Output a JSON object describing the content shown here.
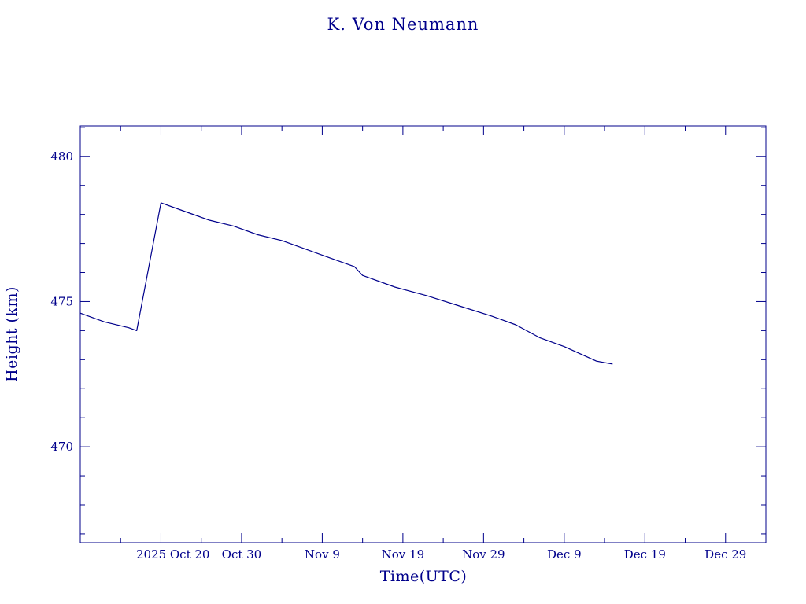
{
  "chart_data": {
    "type": "line",
    "title": "K. Von Neumann",
    "xlabel": "Time(UTC)",
    "ylabel": "Height (km)",
    "xlim": [
      "2025-10-10",
      "2026-01-03"
    ],
    "ylim": [
      466.7,
      481.05
    ],
    "grid": false,
    "color": "#00008b",
    "x_tick_labels": [
      {
        "date": "2025-10-20",
        "label": "2025 Oct 20"
      },
      {
        "date": "2025-10-30",
        "label": "Oct 30"
      },
      {
        "date": "2025-11-09",
        "label": "Nov  9"
      },
      {
        "date": "2025-11-19",
        "label": "Nov 19"
      },
      {
        "date": "2025-11-29",
        "label": "Nov 29"
      },
      {
        "date": "2025-12-09",
        "label": "Dec  9"
      },
      {
        "date": "2025-12-19",
        "label": "Dec 19"
      },
      {
        "date": "2025-12-29",
        "label": "Dec 29"
      }
    ],
    "y_ticks": [
      470,
      475,
      480
    ],
    "series": [
      {
        "x": [
          "2025-10-10",
          "2025-10-13",
          "2025-10-16",
          "2025-10-17",
          "2025-10-20",
          "2025-10-23",
          "2025-10-26",
          "2025-10-29",
          "2025-11-01",
          "2025-11-04",
          "2025-11-06",
          "2025-11-09",
          "2025-11-12",
          "2025-11-13",
          "2025-11-14",
          "2025-11-18",
          "2025-11-22",
          "2025-11-26",
          "2025-11-30",
          "2025-12-03",
          "2025-12-06",
          "2025-12-09",
          "2025-12-11",
          "2025-12-13",
          "2025-12-15"
        ],
        "y": [
          474.6,
          474.3,
          474.1,
          474.0,
          478.4,
          478.1,
          477.8,
          477.6,
          477.3,
          477.1,
          476.9,
          476.6,
          476.3,
          476.2,
          475.9,
          475.5,
          475.2,
          474.85,
          474.5,
          474.2,
          473.75,
          473.45,
          473.2,
          472.95,
          472.85
        ]
      }
    ]
  }
}
